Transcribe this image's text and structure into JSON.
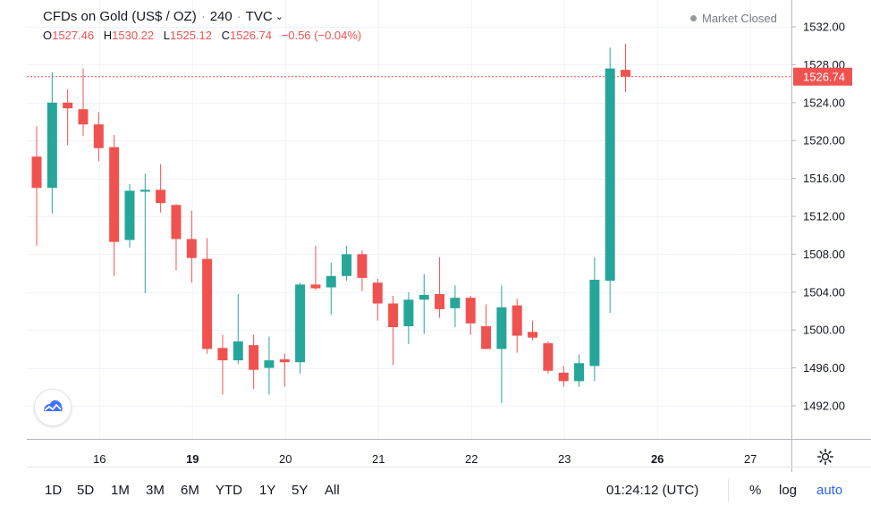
{
  "header": {
    "symbol": "CFDs on Gold (US$ / OZ)",
    "interval": "240",
    "source": "TVC",
    "ohlc": [
      {
        "label": "O",
        "value": "1527.46"
      },
      {
        "label": "H",
        "value": "1530.22"
      },
      {
        "label": "L",
        "value": "1525.12"
      },
      {
        "label": "C",
        "value": "1526.74"
      },
      {
        "label": "",
        "value": "−0.56 (−0.04%)"
      }
    ],
    "market_status": "Market Closed"
  },
  "colors": {
    "up": "#26a69a",
    "down": "#ef5350",
    "grid": "#f0f3fa",
    "axis_text": "#131722",
    "price_line": "#ef5350"
  },
  "logo_icon": "tradingview-cloud-icon",
  "settings_icon": "gear-icon",
  "bottom_bar": {
    "ranges": [
      "1D",
      "5D",
      "1M",
      "3M",
      "6M",
      "YTD",
      "1Y",
      "5Y",
      "All"
    ],
    "time": "01:24:12 (UTC)",
    "options": [
      "%",
      "log",
      "auto"
    ]
  },
  "chart_data": {
    "type": "candlestick",
    "title": "CFDs on Gold (US$ / OZ)",
    "interval": "240",
    "ylim": [
      1488,
      1534
    ],
    "y_ticks": [
      "1492.00",
      "1496.00",
      "1500.00",
      "1504.00",
      "1508.00",
      "1512.00",
      "1516.00",
      "1520.00",
      "1524.00",
      "1528.00",
      "1532.00"
    ],
    "x_ticks": [
      "16",
      "19",
      "20",
      "21",
      "22",
      "23",
      "26",
      "27"
    ],
    "x_ticks_bold": [
      "19",
      "26"
    ],
    "last_price": "1526.74",
    "grid": true,
    "candles": [
      {
        "o": 1518.3,
        "h": 1521.5,
        "l": 1508.9,
        "c": 1515.0
      },
      {
        "o": 1515.0,
        "h": 1527.2,
        "l": 1512.3,
        "c": 1524.0
      },
      {
        "o": 1524.0,
        "h": 1525.4,
        "l": 1519.5,
        "c": 1523.4
      },
      {
        "o": 1523.3,
        "h": 1527.6,
        "l": 1520.5,
        "c": 1521.7
      },
      {
        "o": 1521.7,
        "h": 1523.0,
        "l": 1517.8,
        "c": 1519.2
      },
      {
        "o": 1519.3,
        "h": 1520.6,
        "l": 1505.7,
        "c": 1509.3
      },
      {
        "o": 1509.5,
        "h": 1515.4,
        "l": 1508.7,
        "c": 1514.7
      },
      {
        "o": 1514.6,
        "h": 1516.5,
        "l": 1503.9,
        "c": 1514.8
      },
      {
        "o": 1514.8,
        "h": 1517.5,
        "l": 1512.4,
        "c": 1513.4
      },
      {
        "o": 1513.2,
        "h": 1513.3,
        "l": 1506.3,
        "c": 1509.6
      },
      {
        "o": 1509.6,
        "h": 1512.6,
        "l": 1505.0,
        "c": 1507.6
      },
      {
        "o": 1507.5,
        "h": 1509.7,
        "l": 1497.5,
        "c": 1498.0
      },
      {
        "o": 1498.1,
        "h": 1499.5,
        "l": 1493.2,
        "c": 1496.8
      },
      {
        "o": 1496.8,
        "h": 1503.8,
        "l": 1496.4,
        "c": 1498.8
      },
      {
        "o": 1498.4,
        "h": 1499.5,
        "l": 1493.8,
        "c": 1495.8
      },
      {
        "o": 1496.0,
        "h": 1499.3,
        "l": 1493.2,
        "c": 1496.8
      },
      {
        "o": 1496.9,
        "h": 1497.5,
        "l": 1494.0,
        "c": 1496.6
      },
      {
        "o": 1496.6,
        "h": 1505.0,
        "l": 1495.4,
        "c": 1504.8
      },
      {
        "o": 1504.8,
        "h": 1508.9,
        "l": 1504.2,
        "c": 1504.4
      },
      {
        "o": 1504.5,
        "h": 1507.1,
        "l": 1501.6,
        "c": 1505.7
      },
      {
        "o": 1505.7,
        "h": 1508.9,
        "l": 1505.2,
        "c": 1508.0
      },
      {
        "o": 1508.0,
        "h": 1508.4,
        "l": 1504.1,
        "c": 1505.5
      },
      {
        "o": 1505.0,
        "h": 1505.4,
        "l": 1501.0,
        "c": 1502.8
      },
      {
        "o": 1502.8,
        "h": 1503.6,
        "l": 1496.3,
        "c": 1500.3
      },
      {
        "o": 1500.4,
        "h": 1504.0,
        "l": 1498.5,
        "c": 1503.2
      },
      {
        "o": 1503.2,
        "h": 1505.9,
        "l": 1499.6,
        "c": 1503.7
      },
      {
        "o": 1503.8,
        "h": 1507.7,
        "l": 1501.3,
        "c": 1502.2
      },
      {
        "o": 1502.3,
        "h": 1504.7,
        "l": 1500.3,
        "c": 1503.4
      },
      {
        "o": 1503.4,
        "h": 1503.6,
        "l": 1499.5,
        "c": 1500.7
      },
      {
        "o": 1500.4,
        "h": 1502.7,
        "l": 1498.0,
        "c": 1498.0
      },
      {
        "o": 1498.0,
        "h": 1504.7,
        "l": 1492.3,
        "c": 1502.4
      },
      {
        "o": 1502.6,
        "h": 1503.3,
        "l": 1497.6,
        "c": 1499.4
      },
      {
        "o": 1499.8,
        "h": 1501.0,
        "l": 1498.9,
        "c": 1499.2
      },
      {
        "o": 1498.6,
        "h": 1498.8,
        "l": 1495.4,
        "c": 1495.7
      },
      {
        "o": 1495.5,
        "h": 1496.2,
        "l": 1494.0,
        "c": 1494.6
      },
      {
        "o": 1494.6,
        "h": 1497.4,
        "l": 1494.0,
        "c": 1496.5
      },
      {
        "o": 1496.2,
        "h": 1507.7,
        "l": 1494.6,
        "c": 1505.3
      },
      {
        "o": 1505.2,
        "h": 1529.8,
        "l": 1501.8,
        "c": 1527.6
      },
      {
        "o": 1527.46,
        "h": 1530.22,
        "l": 1525.12,
        "c": 1526.74
      }
    ]
  }
}
